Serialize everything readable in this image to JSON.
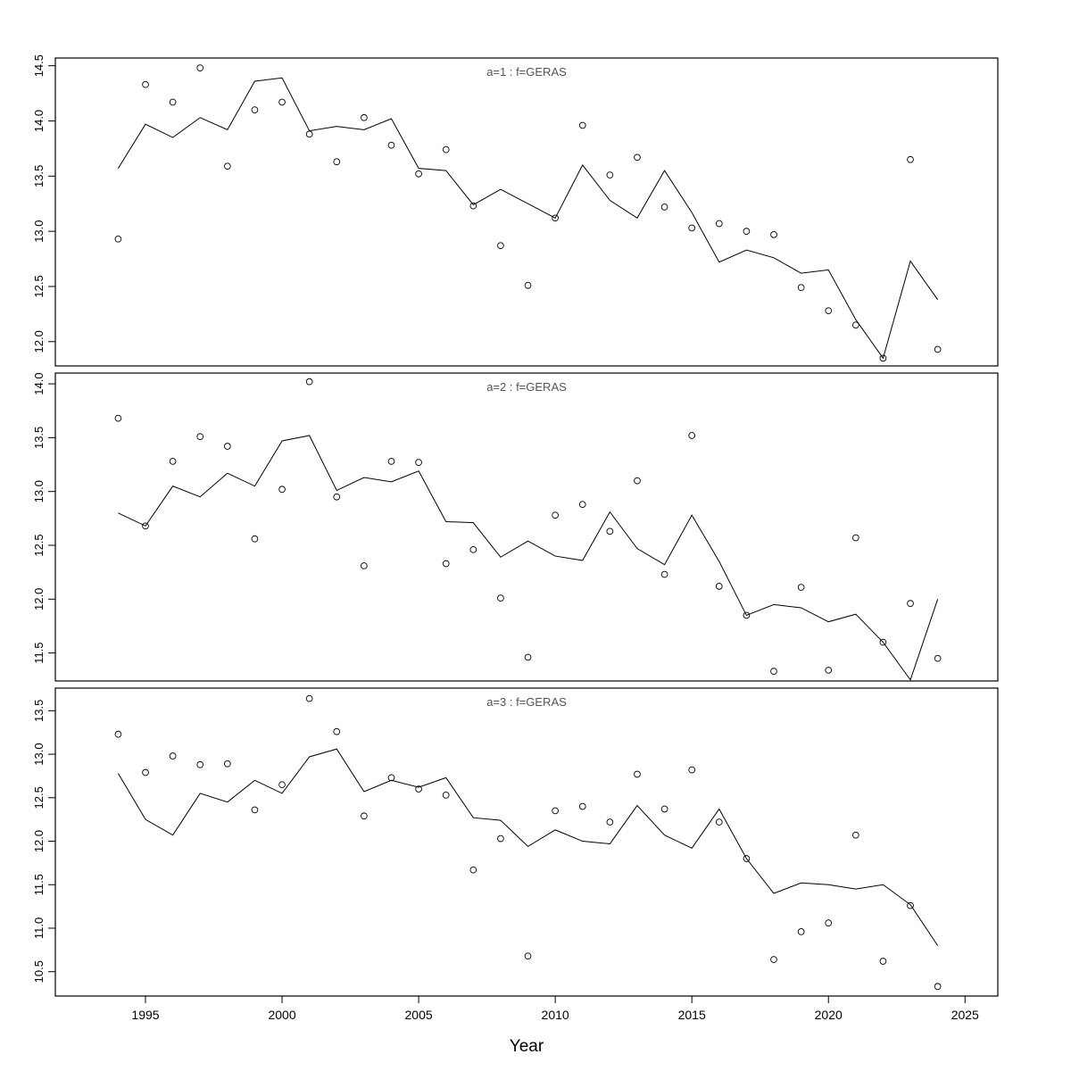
{
  "figure": {
    "background": "#ffffff",
    "axis_color": "#000000",
    "point_color": "#000000",
    "line_color": "#000000",
    "title_color": "#555555"
  },
  "chart_data": {
    "type": "scatter",
    "xlabel": "Year",
    "grid": false,
    "legend": "none",
    "x": [
      1994,
      1995,
      1996,
      1997,
      1998,
      1999,
      2000,
      2001,
      2002,
      2003,
      2004,
      2005,
      2006,
      2007,
      2008,
      2009,
      2010,
      2011,
      2012,
      2013,
      2014,
      2015,
      2016,
      2017,
      2018,
      2019,
      2020,
      2021,
      2022,
      2023,
      2024
    ],
    "xticks": [
      1995,
      2000,
      2005,
      2010,
      2015,
      2020,
      2025
    ],
    "xlim": [
      1991.7,
      2026.2
    ],
    "panels": [
      {
        "title": "a=1 : f=GERAS",
        "ylim": [
          11.78,
          14.57
        ],
        "yticks": [
          12.0,
          12.5,
          13.0,
          13.5,
          14.0,
          14.5
        ],
        "series": [
          {
            "name": "observed",
            "style": "points",
            "values": [
              12.93,
              14.33,
              14.17,
              14.48,
              13.59,
              14.1,
              14.17,
              13.88,
              13.63,
              14.03,
              13.78,
              13.52,
              13.74,
              13.23,
              12.87,
              12.51,
              13.12,
              13.96,
              13.51,
              13.67,
              13.22,
              13.03,
              13.07,
              13.0,
              12.97,
              12.49,
              12.28,
              12.15,
              11.85,
              13.65,
              11.93
            ]
          },
          {
            "name": "fitted",
            "style": "line",
            "values": [
              13.57,
              13.97,
              13.85,
              14.03,
              13.92,
              14.36,
              14.39,
              13.91,
              13.95,
              13.92,
              14.02,
              13.57,
              13.55,
              13.24,
              13.38,
              13.25,
              13.12,
              13.6,
              13.28,
              13.12,
              13.55,
              13.17,
              12.72,
              12.83,
              12.76,
              12.62,
              12.65,
              12.2,
              11.85,
              12.73,
              12.38
            ]
          }
        ]
      },
      {
        "title": "a=2 : f=GERAS",
        "ylim": [
          11.24,
          14.1
        ],
        "yticks": [
          11.5,
          12.0,
          12.5,
          13.0,
          13.5,
          14.0
        ],
        "series": [
          {
            "name": "observed",
            "style": "points",
            "values": [
              13.68,
              12.68,
              13.28,
              13.51,
              13.42,
              12.56,
              13.02,
              14.02,
              12.95,
              12.31,
              13.28,
              13.27,
              12.33,
              12.46,
              12.01,
              11.46,
              12.78,
              12.88,
              12.63,
              13.1,
              12.23,
              13.52,
              12.12,
              11.85,
              11.33,
              12.11,
              11.34,
              12.57,
              11.6,
              11.96,
              11.45
            ]
          },
          {
            "name": "fitted",
            "style": "line",
            "values": [
              12.8,
              12.68,
              13.05,
              12.95,
              13.17,
              13.05,
              13.47,
              13.52,
              13.01,
              13.13,
              13.09,
              13.19,
              12.72,
              12.71,
              12.39,
              12.54,
              12.4,
              12.36,
              12.81,
              12.47,
              12.32,
              12.78,
              12.35,
              11.85,
              11.95,
              11.92,
              11.79,
              11.86,
              11.6,
              11.25,
              12.0
            ]
          }
        ]
      },
      {
        "title": "a=3 : f=GERAS",
        "ylim": [
          10.22,
          13.76
        ],
        "yticks": [
          10.5,
          11.0,
          11.5,
          12.0,
          12.5,
          13.0,
          13.5
        ],
        "series": [
          {
            "name": "observed",
            "style": "points",
            "values": [
              13.23,
              12.79,
              12.98,
              12.88,
              12.89,
              12.36,
              12.65,
              13.64,
              13.26,
              12.29,
              12.73,
              12.6,
              12.53,
              11.67,
              12.03,
              10.68,
              12.35,
              12.4,
              12.22,
              12.77,
              12.37,
              12.82,
              12.22,
              11.8,
              10.64,
              10.96,
              11.06,
              12.07,
              10.62,
              11.26,
              10.33
            ]
          },
          {
            "name": "fitted",
            "style": "line",
            "values": [
              12.78,
              12.25,
              12.07,
              12.55,
              12.45,
              12.7,
              12.55,
              12.97,
              13.06,
              12.57,
              12.7,
              12.62,
              12.73,
              12.27,
              12.24,
              11.94,
              12.13,
              12.0,
              11.97,
              12.41,
              12.07,
              11.92,
              12.37,
              11.8,
              11.4,
              11.52,
              11.5,
              11.45,
              11.5,
              11.27,
              10.8
            ]
          }
        ]
      }
    ]
  }
}
